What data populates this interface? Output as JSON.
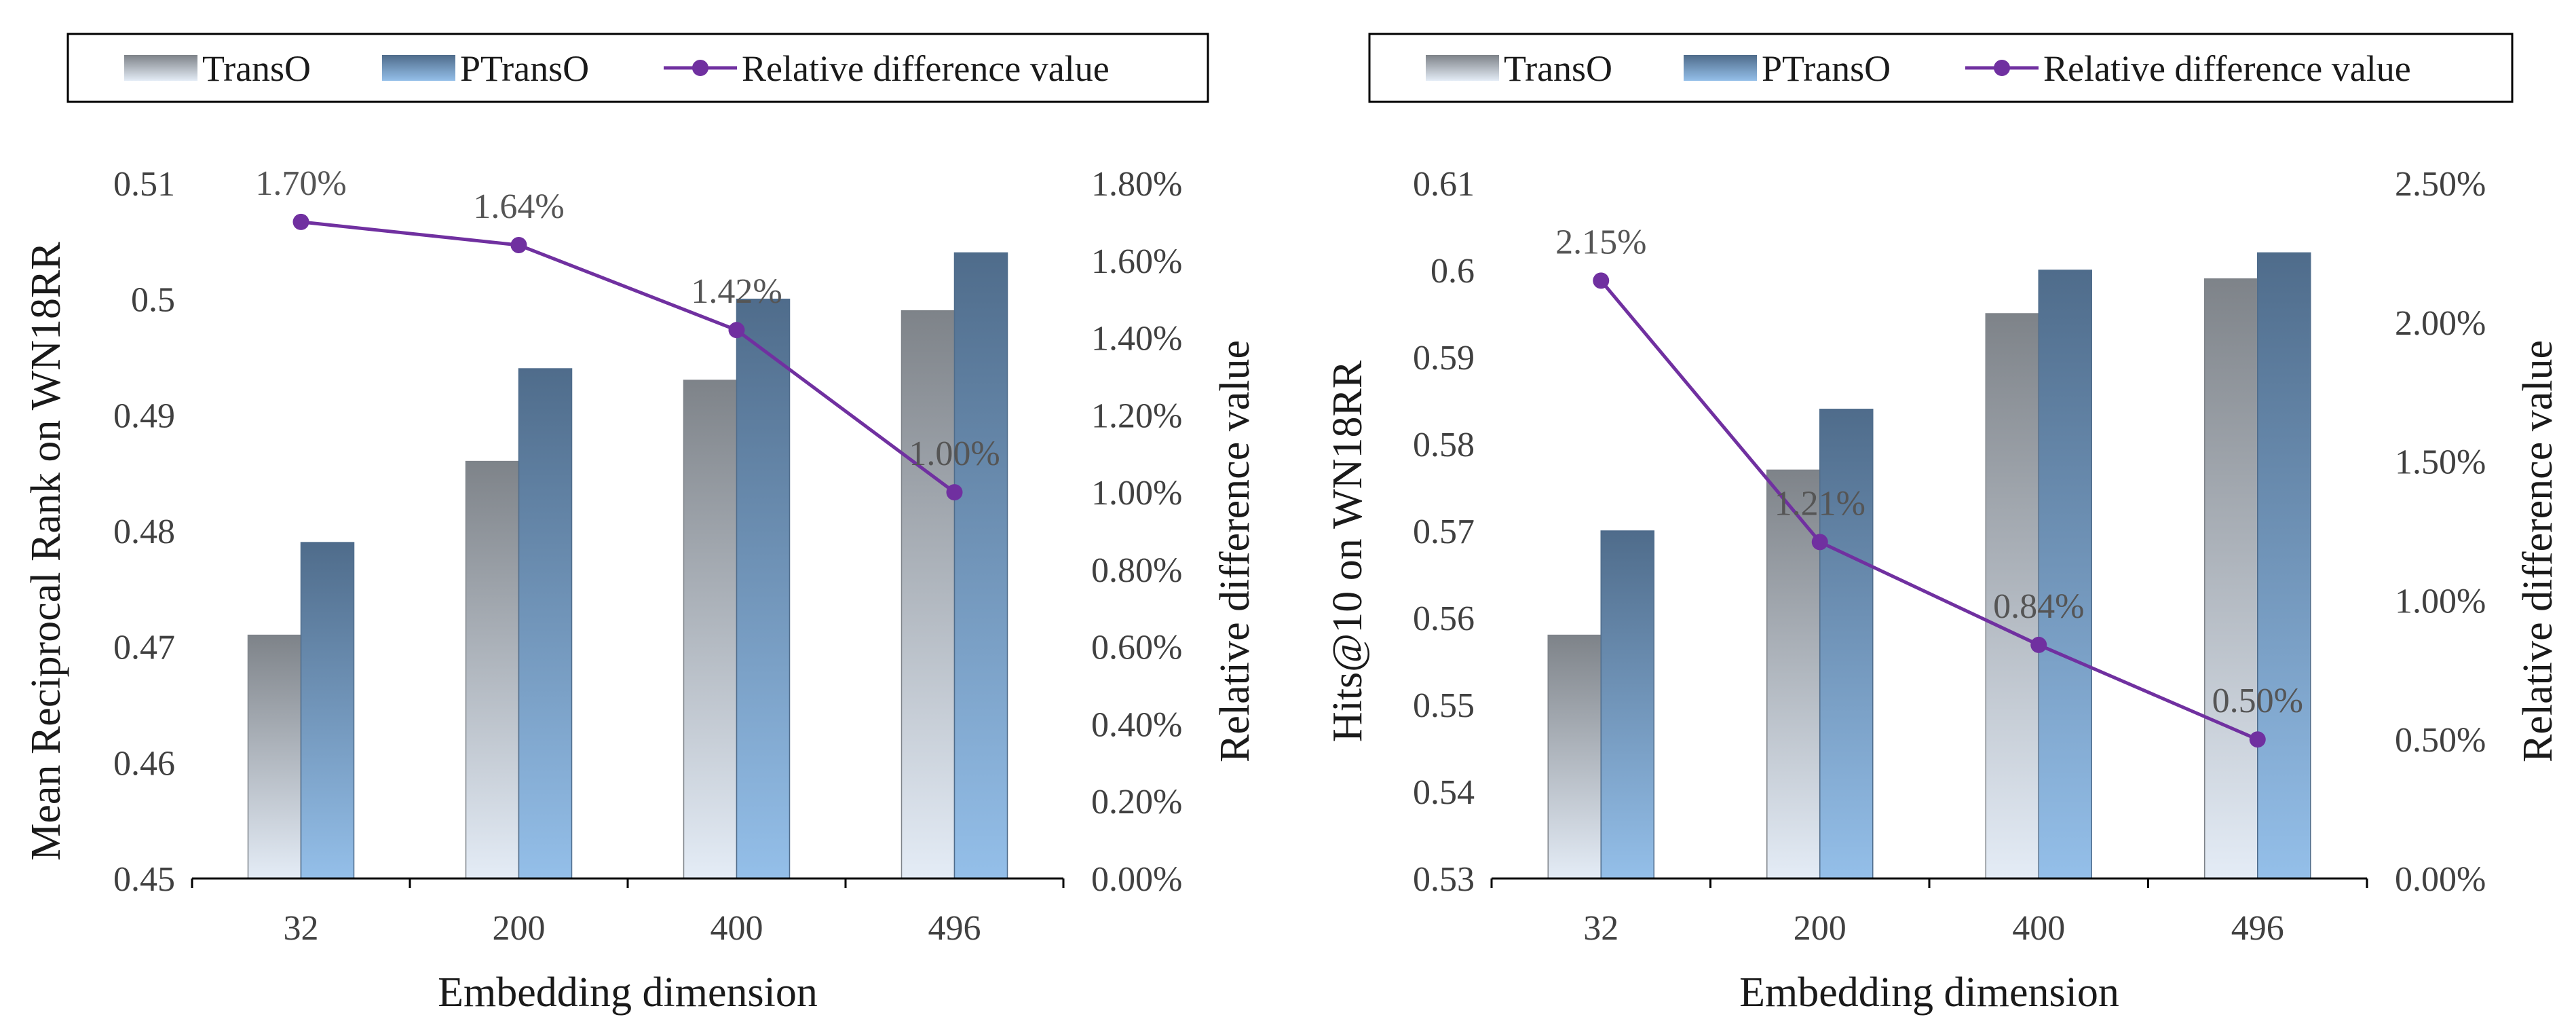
{
  "colors": {
    "line": "#7030A0",
    "axis": "#000000",
    "transo_top": "#7e8389",
    "transo_bottom": "#e4ecf6",
    "ptranso_top": "#4f6c8b",
    "ptranso_bottom": "#94bfe9"
  },
  "chart_data": [
    {
      "type": "bar",
      "secondary_type": "line",
      "categories": [
        "32",
        "200",
        "400",
        "496"
      ],
      "xlabel": "Embedding dimension",
      "ylabel": "Mean Reciprocal Rank on WN18RR",
      "y2label": "Relative difference value",
      "ylim": [
        0.45,
        0.51
      ],
      "yticks": [
        "0.45",
        "0.46",
        "0.47",
        "0.48",
        "0.49",
        "0.5",
        "0.51"
      ],
      "y2lim": [
        0.0,
        0.018
      ],
      "y2ticks": [
        "0.00%",
        "0.20%",
        "0.40%",
        "0.60%",
        "0.80%",
        "1.00%",
        "1.20%",
        "1.40%",
        "1.60%",
        "1.80%"
      ],
      "legend": [
        "TransO",
        "PTransO",
        "Relative difference value"
      ],
      "legend_position": "top",
      "series": [
        {
          "name": "TransO",
          "values": [
            0.471,
            0.486,
            0.493,
            0.499
          ]
        },
        {
          "name": "PTransO",
          "values": [
            0.479,
            0.494,
            0.5,
            0.504
          ]
        }
      ],
      "line_series": {
        "name": "Relative difference value",
        "values": [
          0.017,
          0.0164,
          0.0142,
          0.01
        ],
        "labels": [
          "1.70%",
          "1.64%",
          "1.42%",
          "1.00%"
        ]
      }
    },
    {
      "type": "bar",
      "secondary_type": "line",
      "categories": [
        "32",
        "200",
        "400",
        "496"
      ],
      "xlabel": "Embedding dimension",
      "ylabel": "Hits@10 on WN18RR",
      "y2label": "Relative difference value",
      "ylim": [
        0.53,
        0.61
      ],
      "yticks": [
        "0.53",
        "0.54",
        "0.55",
        "0.56",
        "0.57",
        "0.58",
        "0.59",
        "0.6",
        "0.61"
      ],
      "y2lim": [
        0.0,
        0.025
      ],
      "y2ticks": [
        "0.00%",
        "0.50%",
        "1.00%",
        "1.50%",
        "2.00%",
        "2.50%"
      ],
      "legend": [
        "TransO",
        "PTransO",
        "Relative difference value"
      ],
      "legend_position": "top",
      "series": [
        {
          "name": "TransO",
          "values": [
            0.558,
            0.577,
            0.595,
            0.599
          ]
        },
        {
          "name": "PTransO",
          "values": [
            0.57,
            0.584,
            0.6,
            0.602
          ]
        }
      ],
      "line_series": {
        "name": "Relative difference value",
        "values": [
          0.0215,
          0.0121,
          0.0084,
          0.005
        ],
        "labels": [
          "2.15%",
          "1.21%",
          "0.84%",
          "0.50%"
        ]
      }
    }
  ]
}
